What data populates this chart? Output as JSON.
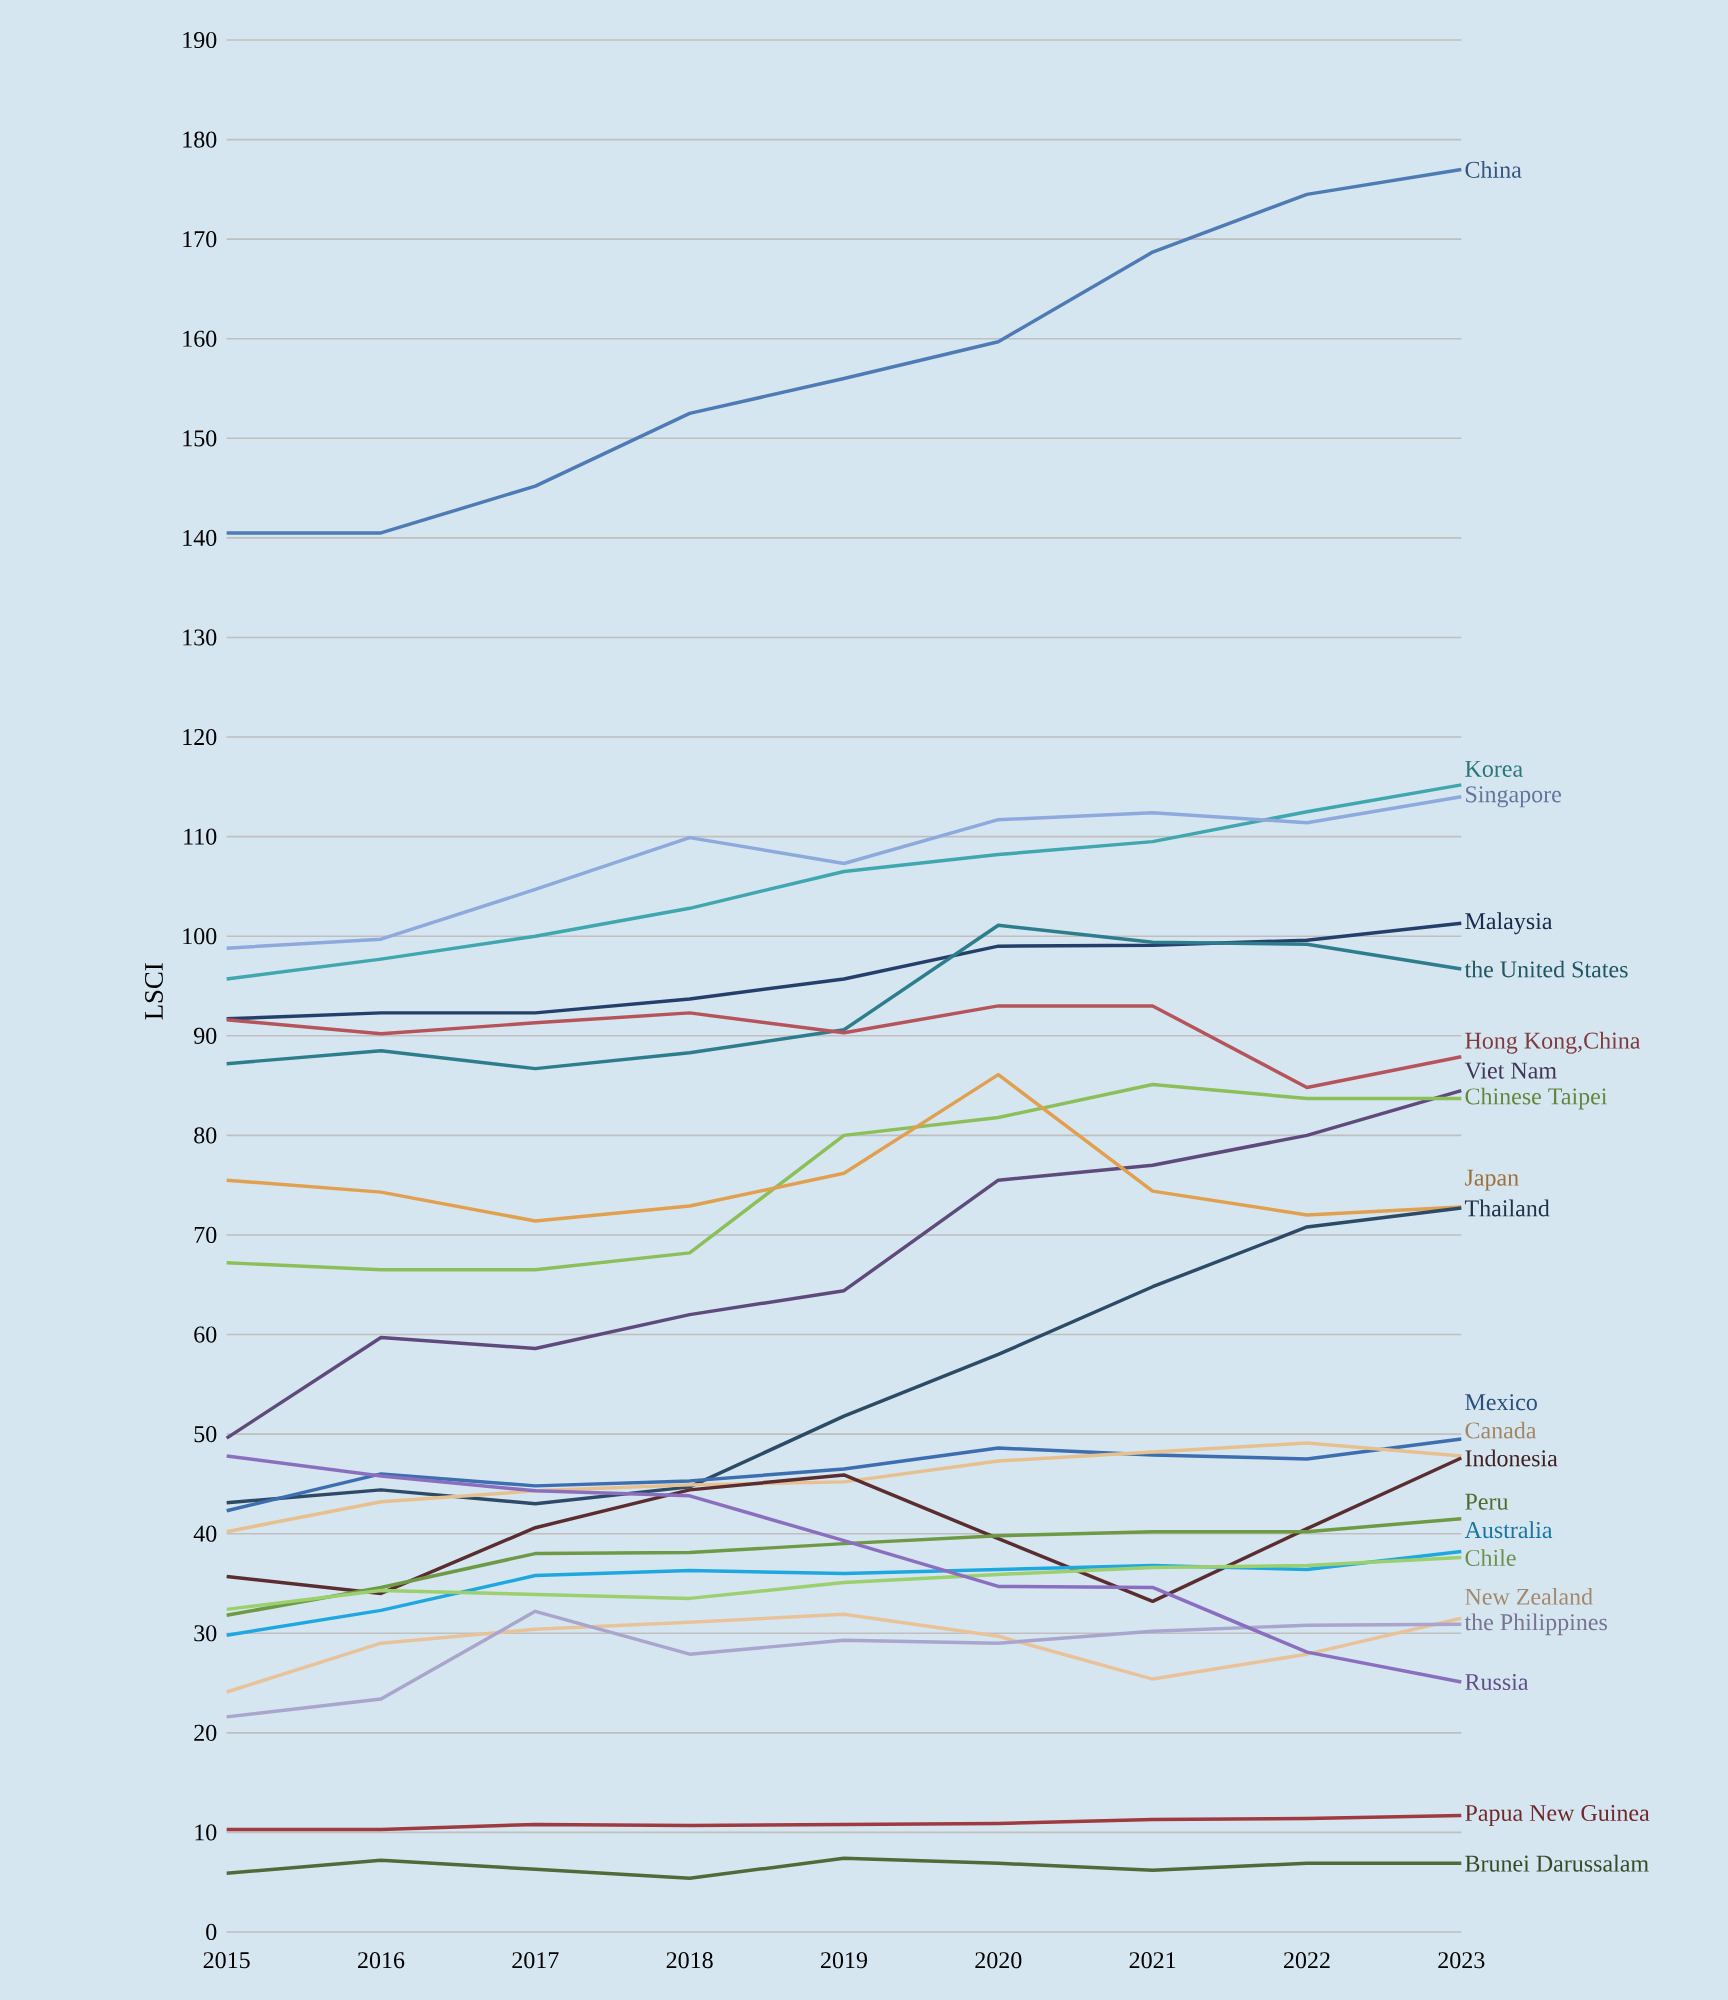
{
  "chart_data": {
    "type": "line",
    "ylabel": "LSCI",
    "x": [
      2015,
      2016,
      2017,
      2018,
      2019,
      2020,
      2021,
      2022,
      2023
    ],
    "xlim": [
      2015,
      2023
    ],
    "xticks": [
      2015,
      2016,
      2017,
      2018,
      2019,
      2020,
      2021,
      2022,
      2023
    ],
    "ylim": [
      0,
      190
    ],
    "yticks": [
      0,
      10,
      20,
      30,
      40,
      50,
      60,
      70,
      80,
      90,
      100,
      110,
      120,
      130,
      140,
      150,
      160,
      170,
      180,
      190
    ],
    "grid": "y",
    "series": [
      {
        "name": "China",
        "color": "#4f7bb5",
        "values": [
          140.5,
          140.5,
          145.2,
          152.5,
          156,
          159.7,
          168.7,
          174.5,
          177
        ]
      },
      {
        "name": "Korea",
        "color": "#3fa7ad",
        "values": [
          95.7,
          97.7,
          100,
          102.8,
          106.5,
          108.2,
          109.5,
          112.5,
          115.2
        ]
      },
      {
        "name": "Singapore",
        "color": "#8ea9dc",
        "values": [
          98.8,
          99.7,
          104.7,
          109.9,
          107.3,
          111.7,
          112.4,
          111.4,
          114
        ]
      },
      {
        "name": "Malaysia",
        "color": "#253f6b",
        "values": [
          91.7,
          92.3,
          92.3,
          93.7,
          95.7,
          99,
          99.1,
          99.6,
          101.3
        ]
      },
      {
        "name": "the United States",
        "color": "#2e7d8c",
        "values": [
          87.2,
          88.5,
          86.7,
          88.3,
          90.6,
          101.1,
          99.4,
          99.2,
          96.7
        ]
      },
      {
        "name": "Hong Kong,China",
        "color": "#b5545a",
        "values": [
          91.6,
          90.2,
          91.3,
          92.3,
          90.3,
          93,
          93,
          84.8,
          87.9
        ]
      },
      {
        "name": "Viet Nam",
        "color": "#5e4b7c",
        "values": [
          49.6,
          59.7,
          58.6,
          62,
          64.4,
          75.5,
          77,
          80,
          84.5
        ]
      },
      {
        "name": "Chinese Taipei",
        "color": "#8cbf5a",
        "values": [
          67.2,
          66.5,
          66.5,
          68.2,
          80,
          81.8,
          85.1,
          83.7,
          83.7
        ]
      },
      {
        "name": "Japan",
        "color": "#e0a050",
        "values": [
          75.5,
          74.3,
          71.4,
          72.9,
          76.2,
          86.1,
          74.4,
          72,
          72.8
        ]
      },
      {
        "name": "Thailand",
        "color": "#2d4a66",
        "values": [
          43.1,
          44.4,
          43,
          44.7,
          51.8,
          58,
          64.8,
          70.8,
          72.7
        ]
      },
      {
        "name": "Mexico",
        "color": "#3d6fb0",
        "values": [
          42.3,
          46,
          44.8,
          45.3,
          46.5,
          48.6,
          47.9,
          47.5,
          49.5
        ]
      },
      {
        "name": "Canada",
        "color": "#e7c08f",
        "values": [
          40.2,
          43.2,
          44.3,
          44.9,
          45.2,
          47.3,
          48.2,
          49.1,
          47.8
        ]
      },
      {
        "name": "Indonesia",
        "color": "#5a2d30",
        "values": [
          35.7,
          34,
          40.6,
          44.4,
          45.9,
          39.5,
          33.2,
          40.5,
          47.6
        ]
      },
      {
        "name": "Peru",
        "color": "#6f9a45",
        "values": [
          31.8,
          34.6,
          38,
          38.1,
          39,
          39.8,
          40.2,
          40.2,
          41.5
        ]
      },
      {
        "name": "Australia",
        "color": "#1fa8e0",
        "values": [
          29.8,
          32.3,
          35.8,
          36.3,
          36,
          36.4,
          36.8,
          36.4,
          38.2
        ]
      },
      {
        "name": "Chile",
        "color": "#9ccf6e",
        "values": [
          32.4,
          34.3,
          33.9,
          33.5,
          35.1,
          35.9,
          36.6,
          36.8,
          37.6
        ]
      },
      {
        "name": "New Zealand",
        "color": "#e8c39a",
        "values": [
          24.1,
          29,
          30.4,
          31.1,
          31.9,
          29.7,
          25.4,
          27.9,
          31.5
        ]
      },
      {
        "name": "the Philippines",
        "color": "#a9a5cc",
        "values": [
          21.6,
          23.4,
          32.2,
          27.9,
          29.3,
          29,
          30.2,
          30.8,
          30.9
        ]
      },
      {
        "name": "Russia",
        "color": "#8a6fbf",
        "values": [
          47.8,
          45.8,
          44.3,
          43.8,
          39.3,
          34.7,
          34.6,
          28.1,
          25.1
        ]
      },
      {
        "name": "Papua New Guinea",
        "color": "#9e3a40",
        "values": [
          10.3,
          10.3,
          10.8,
          10.7,
          10.8,
          10.9,
          11.3,
          11.4,
          11.7
        ]
      },
      {
        "name": "Brunei Darussalam",
        "color": "#4f6b3a",
        "values": [
          5.9,
          7.2,
          6.3,
          5.4,
          7.4,
          6.9,
          6.2,
          6.9,
          6.9
        ]
      }
    ]
  }
}
